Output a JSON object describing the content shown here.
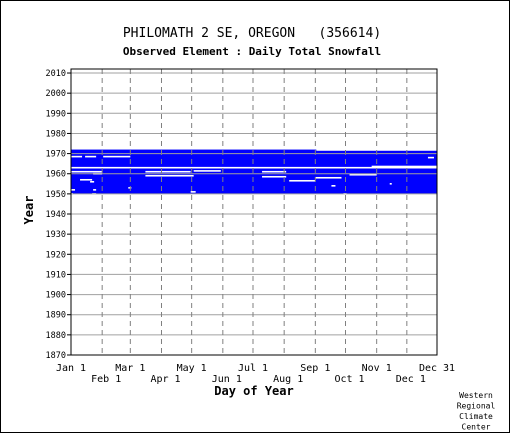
{
  "chart_data": {
    "type": "heatmap",
    "title": "PHILOMATH 2 SE, OREGON   (356614)",
    "subtitle": "Observed Element : Daily Total Snowfall",
    "xlabel": "Day of Year",
    "ylabel": "Year",
    "ylim": [
      1870,
      2012
    ],
    "yticks": [
      1870,
      1880,
      1890,
      1900,
      1910,
      1920,
      1930,
      1940,
      1950,
      1960,
      1970,
      1980,
      1990,
      2000,
      2010
    ],
    "xticks_top_row": [
      {
        "label": "Jan 1",
        "day": 1
      },
      {
        "label": "Mar 1",
        "day": 60
      },
      {
        "label": "May 1",
        "day": 121
      },
      {
        "label": "Jul 1",
        "day": 182
      },
      {
        "label": "Sep 1",
        "day": 244
      },
      {
        "label": "Nov 1",
        "day": 305
      },
      {
        "label": "Dec 31",
        "day": 365
      }
    ],
    "xticks_bottom_row": [
      {
        "label": "Feb 1",
        "day": 32
      },
      {
        "label": "Apr 1",
        "day": 91
      },
      {
        "label": "Jun 1",
        "day": 152
      },
      {
        "label": "Aug 1",
        "day": 213
      },
      {
        "label": "Oct 1",
        "day": 274
      },
      {
        "label": "Dec 1",
        "day": 335
      }
    ],
    "gridlines_days": [
      32,
      60,
      91,
      121,
      152,
      182,
      213,
      244,
      274,
      305,
      335
    ],
    "xlim": [
      1,
      365
    ],
    "grid": true,
    "data_color": "#0000ff",
    "record_periods": [
      {
        "start_day": 1,
        "end_day": 365,
        "start_year": 1950,
        "end_year": 1972
      }
    ],
    "data_gaps": [
      {
        "start_day": 1,
        "end_day": 12,
        "year": 1968.5
      },
      {
        "start_day": 15,
        "end_day": 26,
        "year": 1968.5
      },
      {
        "start_day": 33,
        "end_day": 60,
        "year": 1968.5
      },
      {
        "start_day": 356,
        "end_day": 362,
        "year": 1968
      },
      {
        "start_day": 1,
        "end_day": 365,
        "year": 1963
      },
      {
        "start_day": 1,
        "end_day": 32,
        "year": 1961
      },
      {
        "start_day": 300,
        "end_day": 365,
        "year": 1963.6
      },
      {
        "start_day": 23,
        "end_day": 32,
        "year": 1960
      },
      {
        "start_day": 75,
        "end_day": 120,
        "year": 1961
      },
      {
        "start_day": 123,
        "end_day": 150,
        "year": 1961.4
      },
      {
        "start_day": 75,
        "end_day": 123,
        "year": 1959
      },
      {
        "start_day": 191,
        "end_day": 215,
        "year": 1961
      },
      {
        "start_day": 191,
        "end_day": 215,
        "year": 1958.5
      },
      {
        "start_day": 244,
        "end_day": 270,
        "year": 1958
      },
      {
        "start_day": 278,
        "end_day": 305,
        "year": 1959.5
      },
      {
        "start_day": 10,
        "end_day": 22,
        "year": 1957
      },
      {
        "start_day": 20,
        "end_day": 24,
        "year": 1956
      },
      {
        "start_day": 218,
        "end_day": 244,
        "year": 1956.5
      },
      {
        "start_day": 58,
        "end_day": 61,
        "year": 1953
      },
      {
        "start_day": 260,
        "end_day": 264,
        "year": 1954
      },
      {
        "start_day": 318,
        "end_day": 320,
        "year": 1955
      },
      {
        "start_day": 1,
        "end_day": 5,
        "year": 1952
      },
      {
        "start_day": 23,
        "end_day": 26,
        "year": 1952
      },
      {
        "start_day": 22,
        "end_day": 26,
        "year": 1950
      },
      {
        "start_day": 120,
        "end_day": 125,
        "year": 1951
      },
      {
        "start_day": 1,
        "end_day": 3,
        "year": 1950
      },
      {
        "start_day": 272,
        "end_day": 275,
        "year": 1950
      },
      {
        "start_day": 1,
        "end_day": 26,
        "year": 1949.4
      },
      {
        "start_day": 245,
        "end_day": 365,
        "year": 1971.8
      },
      {
        "start_day": 27,
        "end_day": 60,
        "year": 1949.4
      },
      {
        "start_day": 282,
        "end_day": 305,
        "year": 1949.4
      },
      {
        "start_day": 328,
        "end_day": 365,
        "year": 1949.4
      }
    ]
  },
  "credit": [
    "Western",
    "Regional",
    "Climate",
    "Center"
  ]
}
